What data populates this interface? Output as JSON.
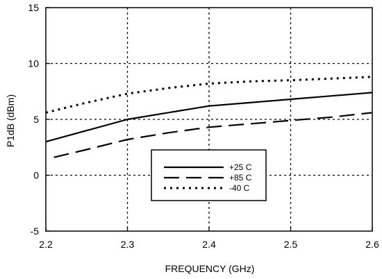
{
  "chart_data": {
    "type": "line",
    "title": "",
    "xlabel": "FREQUENCY (GHz)",
    "ylabel": "P1dB (dBm)",
    "xlim": [
      2.2,
      2.6
    ],
    "ylim": [
      -5,
      15
    ],
    "x_ticks": [
      "2.2",
      "2.3",
      "2.4",
      "2.5",
      "2.6"
    ],
    "y_ticks": [
      "15",
      "10",
      "5",
      "0",
      "-5"
    ],
    "grid": true,
    "legend_position": "center",
    "series": [
      {
        "name": "+25 C",
        "line_style": "solid",
        "color": "#000000",
        "x": [
          2.2,
          2.25,
          2.3,
          2.35,
          2.4,
          2.45,
          2.5,
          2.55,
          2.6
        ],
        "values": [
          3.0,
          4.0,
          5.0,
          5.6,
          6.2,
          6.5,
          6.8,
          7.1,
          7.4
        ]
      },
      {
        "name": "+85 C",
        "line_style": "dashed",
        "color": "#000000",
        "x": [
          2.21,
          2.25,
          2.3,
          2.35,
          2.4,
          2.45,
          2.5,
          2.55,
          2.6
        ],
        "values": [
          1.6,
          2.3,
          3.2,
          3.8,
          4.3,
          4.6,
          4.9,
          5.2,
          5.6
        ]
      },
      {
        "name": "-40 C",
        "line_style": "dotted",
        "color": "#000000",
        "x": [
          2.2,
          2.25,
          2.3,
          2.35,
          2.4,
          2.45,
          2.5,
          2.55,
          2.6
        ],
        "values": [
          5.6,
          6.5,
          7.3,
          7.8,
          8.2,
          8.4,
          8.5,
          8.65,
          8.8
        ]
      }
    ]
  }
}
